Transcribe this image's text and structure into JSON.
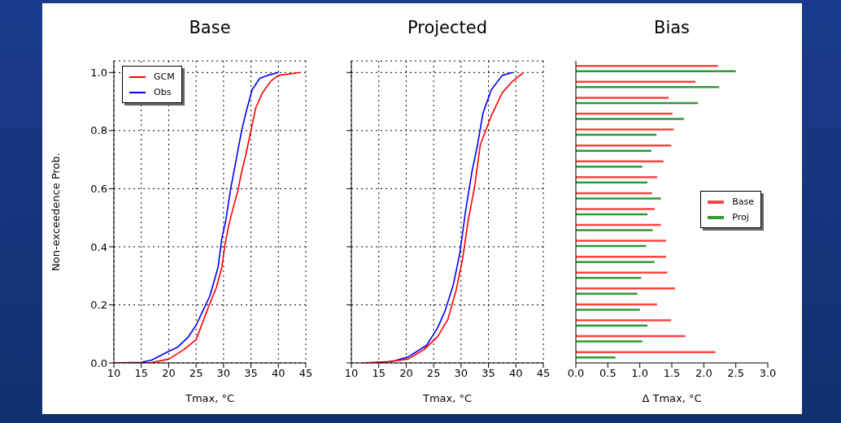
{
  "chart_data": [
    {
      "type": "line",
      "title": "Base",
      "xlabel": "Tmax, °C",
      "ylabel": "Non-exceedence Prob.",
      "xlim": [
        10,
        45
      ],
      "xticks": [
        10,
        15,
        20,
        25,
        30,
        35,
        40,
        45
      ],
      "ylim": [
        0,
        1.04
      ],
      "yticks": [
        {
          "value": 0,
          "label": "0.0"
        },
        {
          "value": 0.2,
          "label": "0.2"
        },
        {
          "value": 0.4,
          "label": "0.4"
        },
        {
          "value": 0.6,
          "label": "0.6"
        },
        {
          "value": 0.8,
          "label": "0.8"
        },
        {
          "value": 1,
          "label": "1.0"
        }
      ],
      "grid": true,
      "legend": "top left",
      "line_style": "solid",
      "series": [
        {
          "name": "GCM",
          "color": "#ff0000",
          "x": [
            10,
            16.5,
            20,
            22.7,
            25,
            27.2,
            28.7,
            29.7,
            30.2,
            30.9,
            31.7,
            32.7,
            33.2,
            34.1,
            35.1,
            35.9,
            37.1,
            38.6,
            40,
            44
          ],
          "values": [
            0,
            0,
            0.013,
            0.045,
            0.08,
            0.19,
            0.26,
            0.33,
            0.4,
            0.47,
            0.53,
            0.6,
            0.65,
            0.72,
            0.81,
            0.88,
            0.93,
            0.97,
            0.99,
            1
          ]
        },
        {
          "name": "Obs",
          "color": "#0000ff",
          "x": [
            10,
            15,
            16.9,
            20,
            21.6,
            23.6,
            25,
            26,
            27.5,
            29,
            29.7,
            30.4,
            31.3,
            32.3,
            33.3,
            34.2,
            35.2,
            36.6,
            38,
            40
          ],
          "values": [
            0,
            0.002,
            0.01,
            0.04,
            0.054,
            0.09,
            0.13,
            0.17,
            0.23,
            0.33,
            0.43,
            0.49,
            0.6,
            0.7,
            0.8,
            0.87,
            0.94,
            0.98,
            0.99,
            1
          ]
        }
      ]
    },
    {
      "type": "line",
      "title": "Projected",
      "xlabel": "Tmax, °C",
      "xlim": [
        10,
        45
      ],
      "xticks": [
        10,
        15,
        20,
        25,
        30,
        35,
        40,
        45
      ],
      "ylim": [
        0,
        1.04
      ],
      "yticks": [
        {
          "value": 0,
          "label": null
        },
        {
          "value": 0.2,
          "label": null
        },
        {
          "value": 0.4,
          "label": null
        },
        {
          "value": 0.6,
          "label": null
        },
        {
          "value": 0.8,
          "label": null
        },
        {
          "value": 1,
          "label": null
        }
      ],
      "grid": true,
      "tick_labels": "x",
      "line_style": "solid",
      "series": [
        {
          "color": "#ff0000",
          "x": [
            12,
            16.9,
            20.3,
            23.2,
            25.7,
            27.6,
            29.1,
            30.3,
            31.3,
            32.5,
            33.5,
            35.5,
            37.5,
            39.4,
            41.4
          ],
          "values": [
            0,
            0.005,
            0.013,
            0.045,
            0.09,
            0.15,
            0.25,
            0.36,
            0.49,
            0.61,
            0.75,
            0.85,
            0.93,
            0.97,
            1
          ]
        },
        {
          "color": "#0000ff",
          "x": [
            13.9,
            17.4,
            20.3,
            23.7,
            25.7,
            27.1,
            28.6,
            29.8,
            30.8,
            32,
            33,
            34,
            35.5,
            37.5,
            39.4
          ],
          "values": [
            0,
            0.005,
            0.02,
            0.06,
            0.12,
            0.18,
            0.27,
            0.38,
            0.52,
            0.66,
            0.75,
            0.86,
            0.94,
            0.99,
            1
          ]
        }
      ]
    },
    {
      "type": "bar",
      "orientation": "horizontal",
      "title": "Bias",
      "xlabel": "Δ Tmax, °C",
      "xlim": [
        0,
        3
      ],
      "xticks": [
        {
          "value": 0,
          "label": "0.0"
        },
        {
          "value": 0.5,
          "label": "0.5"
        },
        {
          "value": 1,
          "label": "1.0"
        },
        {
          "value": 1.5,
          "label": "1.5"
        },
        {
          "value": 2,
          "label": "2.0"
        },
        {
          "value": 2.5,
          "label": "2.5"
        },
        {
          "value": 3,
          "label": "3.0"
        }
      ],
      "grid": false,
      "legend": "right",
      "tick_labels": "x",
      "categories": [
        null,
        null,
        null,
        null,
        null,
        null,
        null,
        null,
        null,
        null,
        null,
        null,
        null,
        null,
        null,
        null,
        null,
        null,
        null
      ],
      "series": [
        {
          "name": "Base",
          "color": "#ff4444",
          "values": [
            2.22,
            1.87,
            1.45,
            1.51,
            1.53,
            1.49,
            1.37,
            1.27,
            1.19,
            1.23,
            1.33,
            1.41,
            1.41,
            1.43,
            1.55,
            1.27,
            1.49,
            1.71,
            2.18
          ]
        },
        {
          "name": "Proj",
          "color": "#339933",
          "values": [
            2.5,
            2.24,
            1.91,
            1.69,
            1.26,
            1.18,
            1.04,
            1.12,
            1.33,
            1.12,
            1.2,
            1.1,
            1.23,
            1.02,
            0.96,
            1,
            1.12,
            1.04,
            0.62
          ]
        }
      ]
    }
  ]
}
